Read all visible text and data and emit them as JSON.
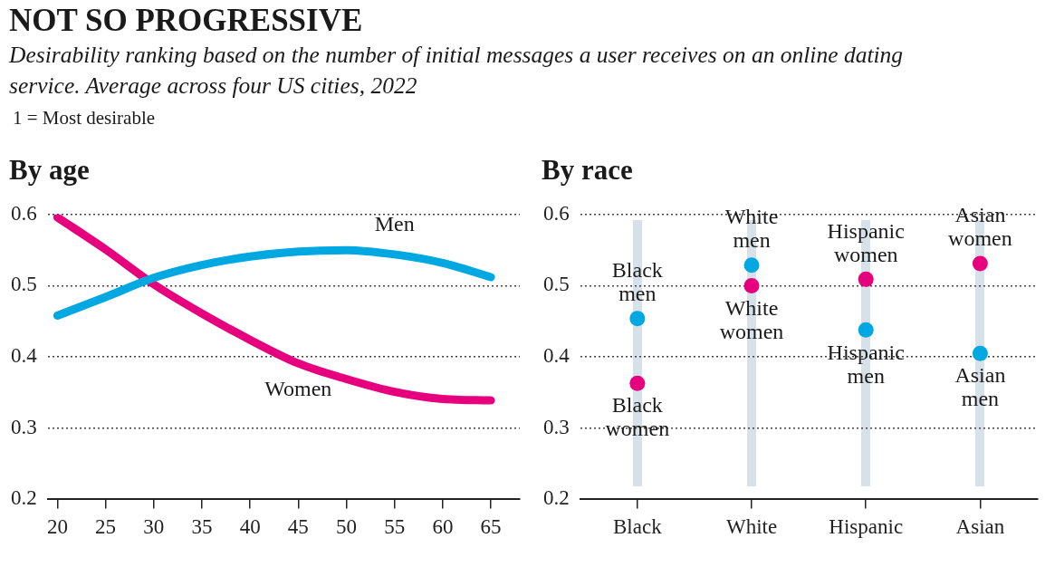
{
  "chart_data": [
    {
      "type": "other",
      "title": "NOT SO PROGRESSIVE",
      "subtitle": "Desirability ranking based on the number of initial messages a user receives on an online dating service. Average across four US cities, 2022",
      "annotations": [
        "1 = Most desirable"
      ]
    },
    {
      "type": "line",
      "title": "By age",
      "x": [
        20,
        25,
        30,
        35,
        40,
        45,
        50,
        55,
        60,
        65
      ],
      "xlim": [
        19,
        68
      ],
      "xticks": [
        20,
        25,
        30,
        35,
        40,
        45,
        50,
        55,
        60,
        65
      ],
      "ylim": [
        0.2,
        0.6
      ],
      "yticks": [
        0.2,
        0.3,
        0.4,
        0.5,
        0.6
      ],
      "grid": "y",
      "marker": "none",
      "series": [
        {
          "name": "Men",
          "color": "#00a8e1",
          "values": [
            0.458,
            0.484,
            0.511,
            0.529,
            0.541,
            0.548,
            0.55,
            0.544,
            0.532,
            0.512
          ]
        },
        {
          "name": "Women",
          "color": "#e6007e",
          "values": [
            0.596,
            0.551,
            0.502,
            0.461,
            0.424,
            0.391,
            0.369,
            0.351,
            0.341,
            0.339
          ]
        }
      ]
    },
    {
      "type": "scatter",
      "title": "By race",
      "categories": [
        "Black",
        "White",
        "Hispanic",
        "Asian"
      ],
      "ylim": [
        0.2,
        0.6
      ],
      "yticks": [
        0.2,
        0.3,
        0.4,
        0.5,
        0.6
      ],
      "grid": "y",
      "marker": "circle",
      "series": [
        {
          "color": "#00a8e1",
          "values": [
            0.454,
            0.529,
            0.438,
            0.405
          ]
        },
        {
          "color": "#e6007e",
          "values": [
            0.363,
            0.5,
            0.509,
            0.531
          ]
        }
      ],
      "annotations": [
        {
          "text": "Black men",
          "x": "Black",
          "y": 0.454
        },
        {
          "text": "Black women",
          "x": "Black",
          "y": 0.363
        },
        {
          "text": "White men",
          "x": "White",
          "y": 0.529
        },
        {
          "text": "White women",
          "x": "White",
          "y": 0.5
        },
        {
          "text": "Hispanic women",
          "x": "Hispanic",
          "y": 0.509
        },
        {
          "text": "Hispanic men",
          "x": "Hispanic",
          "y": 0.438
        },
        {
          "text": "Asian women",
          "x": "Asian",
          "y": 0.531
        },
        {
          "text": "Asian men",
          "x": "Asian",
          "y": 0.405
        }
      ]
    }
  ]
}
